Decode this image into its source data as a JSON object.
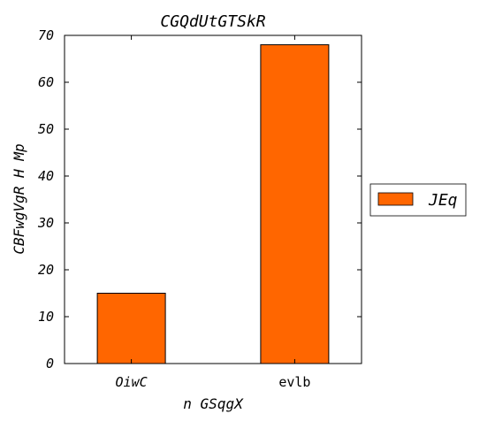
{
  "chart_data": {
    "type": "bar",
    "title": "CGQdUtGTSkR",
    "xlabel": "n GSqgX",
    "ylabel": "CBFwgVgR H Mp",
    "categories": [
      "OiwC",
      "evlb"
    ],
    "series": [
      {
        "name": "JEq",
        "values": [
          15,
          68
        ],
        "color": "#ff6600"
      }
    ],
    "ylim": [
      0,
      70
    ],
    "yticks": [
      0,
      10,
      20,
      30,
      40,
      50,
      60,
      70
    ],
    "grid": false,
    "legend_position": "right"
  }
}
